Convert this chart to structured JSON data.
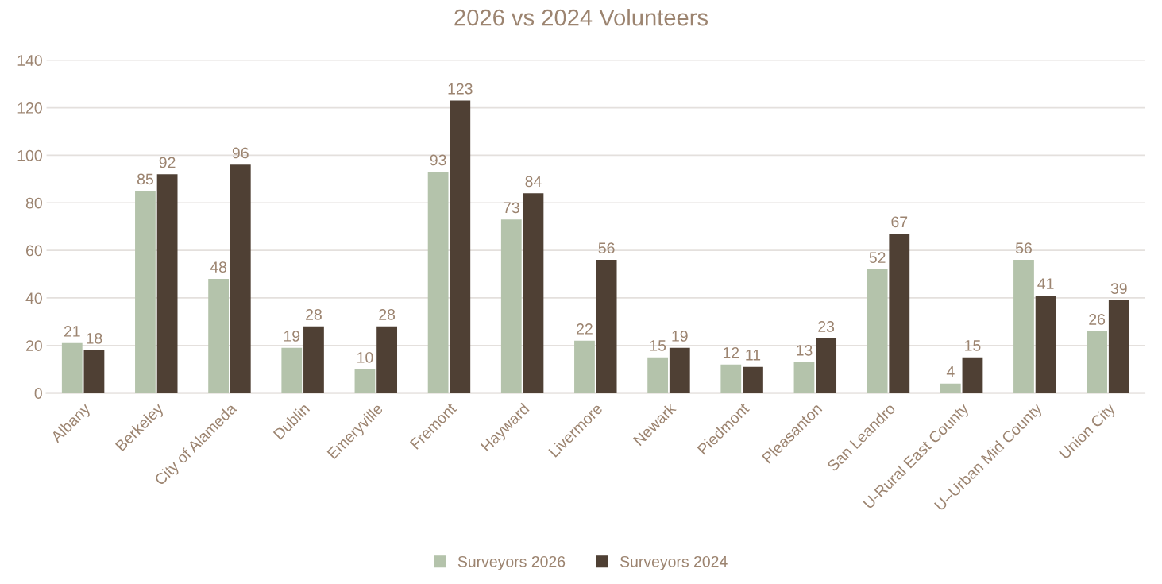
{
  "chart_data": {
    "type": "bar",
    "title": "2026 vs 2024 Volunteers",
    "categories": [
      "Albany",
      "Berkeley",
      "City of Alameda",
      "Dublin",
      "Emeryville",
      "Fremont",
      "Hayward",
      "Livermore",
      "Newark",
      "Piedmont",
      "Pleasanton",
      "San Leandro",
      "U-Rural East County",
      "U–Urban Mid County",
      "Union City"
    ],
    "series": [
      {
        "name": "Surveyors 2026",
        "color": "#b4c3ab",
        "values": [
          21,
          85,
          48,
          19,
          10,
          93,
          73,
          22,
          15,
          12,
          13,
          52,
          4,
          56,
          26
        ]
      },
      {
        "name": "Surveyors 2024",
        "color": "#4f4034",
        "values": [
          18,
          92,
          96,
          28,
          28,
          123,
          84,
          56,
          19,
          11,
          23,
          67,
          15,
          41,
          39
        ]
      }
    ],
    "ylim": [
      0,
      140
    ],
    "yticks": [
      0,
      20,
      40,
      60,
      80,
      100,
      120,
      140
    ],
    "grid": "y",
    "legend": "bottom",
    "data_labels": true
  }
}
